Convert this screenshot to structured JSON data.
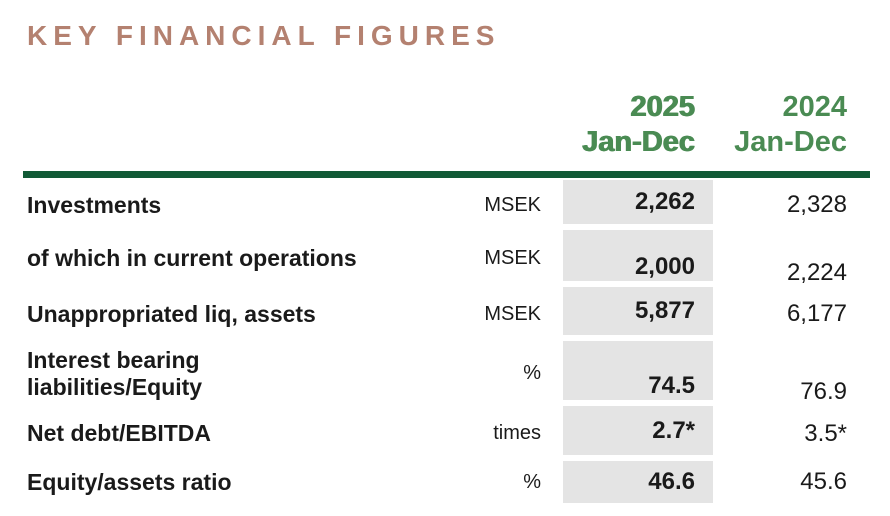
{
  "title": "KEY FINANCIAL FIGURES",
  "header": {
    "columns": [
      {
        "year": "2025",
        "period": "Jan-Dec"
      },
      {
        "year": "2024",
        "period": "Jan-Dec"
      }
    ]
  },
  "table": {
    "rows": [
      {
        "label": "Investments",
        "unit": "MSEK",
        "v2025": "2,262",
        "v2024": "2,328"
      },
      {
        "label": "of which in current operations",
        "unit": "MSEK",
        "v2025": "2,000",
        "v2024": "2,224"
      },
      {
        "label": "Unappropriated liq, assets",
        "unit": "MSEK",
        "v2025": "5,877",
        "v2024": "6,177"
      },
      {
        "label": "Interest bearing\nliabilities/Equity",
        "unit": "%",
        "v2025": "74.5",
        "v2024": "76.9"
      },
      {
        "label": "Net debt/EBITDA",
        "unit": "times",
        "v2025": "2.7*",
        "v2024": "3.5*"
      },
      {
        "label": "Equity/assets ratio",
        "unit": "%",
        "v2025": "46.6",
        "v2024": "45.6"
      }
    ]
  },
  "colors": {
    "title_text": "#b48170",
    "header_text": "#4a8b53",
    "divider": "#115a36",
    "highlight_cell": "#e4e4e4",
    "body_text": "#1a1a1a"
  }
}
